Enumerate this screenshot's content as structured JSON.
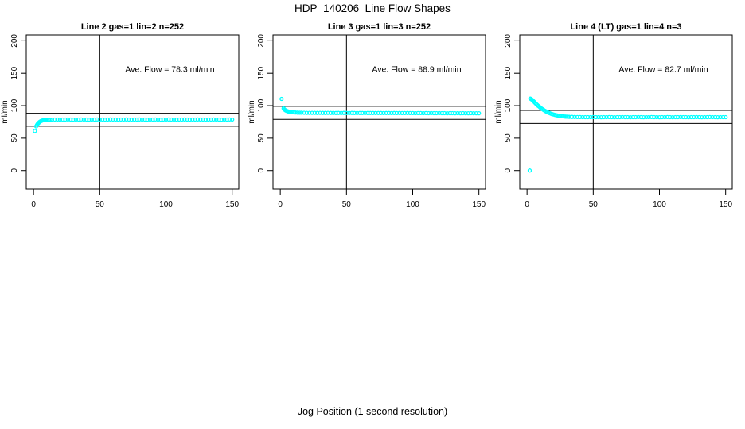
{
  "page": {
    "main_title": "HDP_140206  Line Flow Shapes",
    "x_axis_label": "Jog Position (1 second resolution)"
  },
  "colors": {
    "marker": "#00FFFF",
    "axis": "#000000",
    "background": "#FFFFFF"
  },
  "chart_data": [
    {
      "type": "scatter",
      "title": "Line 2 gas=1 lin=2 n=252",
      "ylabel": "ml/min",
      "xticks": [
        0,
        50,
        100,
        150
      ],
      "yticks": [
        0,
        50,
        100,
        150,
        200
      ],
      "xlim": [
        -5.5,
        155
      ],
      "ylim": [
        -28.5,
        209
      ],
      "grid": false,
      "legend": false,
      "ave_flow_ml_min": 78.3,
      "ref_line_x": 50,
      "ref_lines_y": [
        88.3,
        68.3
      ],
      "marker_color": "#00FFFF",
      "annotation": {
        "text": "Ave. Flow =  78.3  ml/min",
        "x": 103,
        "y": 152
      },
      "points": [
        [
          1,
          61
        ],
        [
          2,
          68.2
        ],
        [
          2.6,
          70.4
        ],
        [
          3.2,
          72.1
        ],
        [
          3.8,
          73.5
        ],
        [
          4.4,
          74.7
        ],
        [
          5,
          75.6
        ],
        [
          5.6,
          76.3
        ],
        [
          6.3,
          76.9
        ],
        [
          7,
          77.4
        ],
        [
          7.8,
          77.8
        ],
        [
          8.6,
          78
        ],
        [
          9.4,
          78.2
        ],
        [
          10.4,
          78.3
        ],
        [
          11.4,
          78.4
        ],
        [
          12.6,
          78.5
        ],
        [
          14,
          78.5
        ],
        [
          16,
          78.6
        ],
        [
          18,
          78.6
        ],
        [
          20,
          78.5
        ],
        [
          22,
          78.6
        ],
        [
          24,
          78.6
        ],
        [
          26,
          78.7
        ],
        [
          28,
          78.6
        ],
        [
          30,
          78.5
        ],
        [
          32,
          78.6
        ],
        [
          34,
          78.6
        ],
        [
          36,
          78.7
        ],
        [
          38,
          78.6
        ],
        [
          40,
          78.6
        ],
        [
          42,
          78.5
        ],
        [
          44,
          78.6
        ],
        [
          46,
          78.6
        ],
        [
          48,
          78.7
        ],
        [
          50,
          78.6
        ],
        [
          52,
          78.6
        ],
        [
          54,
          78.5
        ],
        [
          56,
          78.6
        ],
        [
          58,
          78.7
        ],
        [
          60,
          78.6
        ],
        [
          62,
          78.6
        ],
        [
          64,
          78.5
        ],
        [
          66,
          78.6
        ],
        [
          68,
          78.6
        ],
        [
          70,
          78.7
        ],
        [
          72,
          78.6
        ],
        [
          74,
          78.5
        ],
        [
          76,
          78.6
        ],
        [
          78,
          78.6
        ],
        [
          80,
          78.7
        ],
        [
          82,
          78.6
        ],
        [
          84,
          78.6
        ],
        [
          86,
          78.5
        ],
        [
          88,
          78.6
        ],
        [
          90,
          78.6
        ],
        [
          92,
          78.7
        ],
        [
          94,
          78.6
        ],
        [
          96,
          78.5
        ],
        [
          98,
          78.6
        ],
        [
          100,
          78.6
        ],
        [
          102,
          78.7
        ],
        [
          104,
          78.6
        ],
        [
          106,
          78.6
        ],
        [
          108,
          78.5
        ],
        [
          110,
          78.6
        ],
        [
          112,
          78.6
        ],
        [
          114,
          78.7
        ],
        [
          116,
          78.6
        ],
        [
          118,
          78.5
        ],
        [
          120,
          78.6
        ],
        [
          122,
          78.6
        ],
        [
          124,
          78.7
        ],
        [
          126,
          78.6
        ],
        [
          128,
          78.6
        ],
        [
          130,
          78.5
        ],
        [
          132,
          78.6
        ],
        [
          134,
          78.6
        ],
        [
          136,
          78.7
        ],
        [
          138,
          78.6
        ],
        [
          140,
          78.6
        ],
        [
          142,
          78.5
        ],
        [
          144,
          78.6
        ],
        [
          146,
          78.6
        ],
        [
          148,
          78.7
        ],
        [
          150,
          78.6
        ]
      ]
    },
    {
      "type": "scatter",
      "title": "Line 3 gas=1 lin=3 n=252",
      "ylabel": "ml/min",
      "xticks": [
        0,
        50,
        100,
        150
      ],
      "yticks": [
        0,
        50,
        100,
        150,
        200
      ],
      "xlim": [
        -5.5,
        155
      ],
      "ylim": [
        -28.5,
        209
      ],
      "grid": false,
      "legend": false,
      "ave_flow_ml_min": 88.9,
      "ref_line_x": 50,
      "ref_lines_y": [
        98.9,
        78.9
      ],
      "marker_color": "#00FFFF",
      "annotation": {
        "text": "Ave. Flow =  88.9  ml/min",
        "x": 103,
        "y": 152
      },
      "points": [
        [
          1,
          110.5
        ],
        [
          2.5,
          95.8
        ],
        [
          3.1,
          94.2
        ],
        [
          3.7,
          93.2
        ],
        [
          4.3,
          92.4
        ],
        [
          5,
          91.7
        ],
        [
          5.8,
          91.1
        ],
        [
          6.6,
          90.7
        ],
        [
          7.5,
          90.3
        ],
        [
          8.5,
          90
        ],
        [
          9.5,
          89.8
        ],
        [
          10.5,
          89.6
        ],
        [
          11.5,
          89.5
        ],
        [
          13,
          89.3
        ],
        [
          14.5,
          89.2
        ],
        [
          16,
          89.1
        ],
        [
          18,
          89
        ],
        [
          20,
          88.9
        ],
        [
          22,
          88.9
        ],
        [
          24,
          88.9
        ],
        [
          26,
          88.9
        ],
        [
          28,
          88.8
        ],
        [
          30,
          88.9
        ],
        [
          32,
          88.8
        ],
        [
          34,
          88.8
        ],
        [
          36,
          88.9
        ],
        [
          38,
          88.8
        ],
        [
          40,
          88.8
        ],
        [
          42,
          88.7
        ],
        [
          44,
          88.8
        ],
        [
          46,
          88.7
        ],
        [
          48,
          88.8
        ],
        [
          50,
          88.7
        ],
        [
          52,
          88.7
        ],
        [
          54,
          88.8
        ],
        [
          56,
          88.7
        ],
        [
          58,
          88.7
        ],
        [
          60,
          88.6
        ],
        [
          62,
          88.7
        ],
        [
          64,
          88.6
        ],
        [
          66,
          88.7
        ],
        [
          68,
          88.6
        ],
        [
          70,
          88.6
        ],
        [
          72,
          88.7
        ],
        [
          74,
          88.6
        ],
        [
          76,
          88.6
        ],
        [
          78,
          88.5
        ],
        [
          80,
          88.6
        ],
        [
          82,
          88.6
        ],
        [
          84,
          88.5
        ],
        [
          86,
          88.6
        ],
        [
          88,
          88.5
        ],
        [
          90,
          88.6
        ],
        [
          92,
          88.5
        ],
        [
          94,
          88.5
        ],
        [
          96,
          88.6
        ],
        [
          98,
          88.5
        ],
        [
          100,
          88.5
        ],
        [
          102,
          88.4
        ],
        [
          104,
          88.5
        ],
        [
          106,
          88.5
        ],
        [
          108,
          88.4
        ],
        [
          110,
          88.5
        ],
        [
          112,
          88.4
        ],
        [
          114,
          88.5
        ],
        [
          116,
          88.4
        ],
        [
          118,
          88.4
        ],
        [
          120,
          88.5
        ],
        [
          122,
          88.4
        ],
        [
          124,
          88.4
        ],
        [
          126,
          88.3
        ],
        [
          128,
          88.4
        ],
        [
          130,
          88.4
        ],
        [
          132,
          88.3
        ],
        [
          134,
          88.4
        ],
        [
          136,
          88.3
        ],
        [
          138,
          88.4
        ],
        [
          140,
          88.3
        ],
        [
          142,
          88.3
        ],
        [
          144,
          88.4
        ],
        [
          146,
          88.3
        ],
        [
          148,
          88.3
        ],
        [
          150,
          88.3
        ]
      ]
    },
    {
      "type": "scatter",
      "title": "Line 4 (LT) gas=1 lin=4 n=3",
      "ylabel": "ml/min",
      "xticks": [
        0,
        50,
        100,
        150
      ],
      "yticks": [
        0,
        50,
        100,
        150,
        200
      ],
      "xlim": [
        -5.5,
        155
      ],
      "ylim": [
        -28.5,
        209
      ],
      "grid": false,
      "legend": false,
      "ave_flow_ml_min": 82.7,
      "ref_line_x": 50,
      "ref_lines_y": [
        92.7,
        72.7
      ],
      "marker_color": "#00FFFF",
      "annotation": {
        "text": "Ave. Flow =  82.7  ml/min",
        "x": 103,
        "y": 152
      },
      "points": [
        [
          2,
          0
        ],
        [
          2.5,
          111
        ],
        [
          3.2,
          110
        ],
        [
          3.9,
          108.8
        ],
        [
          4.6,
          107.4
        ],
        [
          5.3,
          106
        ],
        [
          6,
          104.5
        ],
        [
          6.8,
          102.9
        ],
        [
          7.6,
          101.3
        ],
        [
          8.4,
          99.8
        ],
        [
          9.2,
          98.4
        ],
        [
          10,
          97
        ],
        [
          10.8,
          95.8
        ],
        [
          11.6,
          94.6
        ],
        [
          12.5,
          93.4
        ],
        [
          13.4,
          92.2
        ],
        [
          14.3,
          91.2
        ],
        [
          15.2,
          90.2
        ],
        [
          16.1,
          89.3
        ],
        [
          17,
          88.5
        ],
        [
          18,
          87.7
        ],
        [
          19,
          87
        ],
        [
          20,
          86.4
        ],
        [
          21,
          85.8
        ],
        [
          22,
          85.3
        ],
        [
          23,
          84.9
        ],
        [
          24,
          84.5
        ],
        [
          25,
          84.2
        ],
        [
          26,
          83.9
        ],
        [
          27,
          83.6
        ],
        [
          28,
          83.4
        ],
        [
          29,
          83.2
        ],
        [
          30,
          83
        ],
        [
          31,
          82.9
        ],
        [
          32,
          82.8
        ],
        [
          34,
          82.6
        ],
        [
          36,
          82.5
        ],
        [
          38,
          82.4
        ],
        [
          40,
          82.4
        ],
        [
          42,
          82.3
        ],
        [
          44,
          82.3
        ],
        [
          46,
          82.3
        ],
        [
          48,
          82.3
        ],
        [
          50,
          82.4
        ],
        [
          52,
          82.3
        ],
        [
          54,
          82.3
        ],
        [
          56,
          82.2
        ],
        [
          58,
          82.3
        ],
        [
          60,
          82.3
        ],
        [
          62,
          82.4
        ],
        [
          64,
          82.3
        ],
        [
          66,
          82.2
        ],
        [
          68,
          82.3
        ],
        [
          70,
          82.3
        ],
        [
          72,
          82.4
        ],
        [
          74,
          82.3
        ],
        [
          76,
          82.3
        ],
        [
          78,
          82.2
        ],
        [
          80,
          82.3
        ],
        [
          82,
          82.3
        ],
        [
          84,
          82.4
        ],
        [
          86,
          82.3
        ],
        [
          88,
          82.2
        ],
        [
          90,
          82.3
        ],
        [
          92,
          82.3
        ],
        [
          94,
          82.4
        ],
        [
          96,
          82.3
        ],
        [
          98,
          82.3
        ],
        [
          100,
          82.2
        ],
        [
          102,
          82.3
        ],
        [
          104,
          82.3
        ],
        [
          106,
          82.4
        ],
        [
          108,
          82.3
        ],
        [
          110,
          82.2
        ],
        [
          112,
          82.3
        ],
        [
          114,
          82.3
        ],
        [
          116,
          82.4
        ],
        [
          118,
          82.3
        ],
        [
          120,
          82.3
        ],
        [
          122,
          82.2
        ],
        [
          124,
          82.3
        ],
        [
          126,
          82.3
        ],
        [
          128,
          82.4
        ],
        [
          130,
          82.3
        ],
        [
          132,
          82.2
        ],
        [
          134,
          82.3
        ],
        [
          136,
          82.3
        ],
        [
          138,
          82.4
        ],
        [
          140,
          82.3
        ],
        [
          142,
          82.3
        ],
        [
          144,
          82.2
        ],
        [
          146,
          82.3
        ],
        [
          148,
          82.3
        ],
        [
          150,
          82.3
        ]
      ]
    }
  ]
}
